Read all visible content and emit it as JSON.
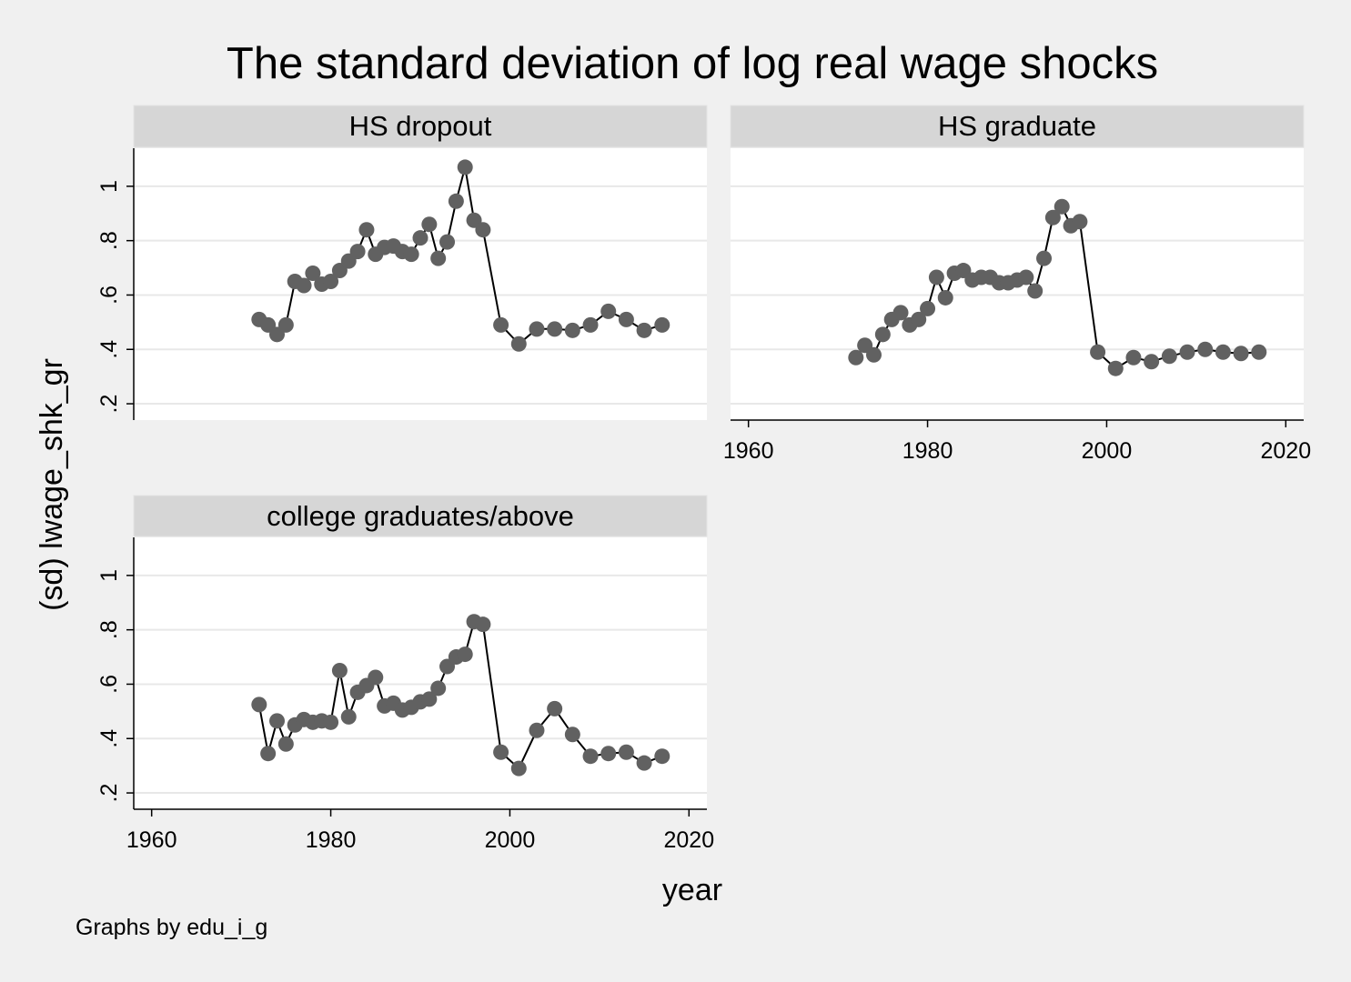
{
  "chart_data": {
    "type": "scatter",
    "title": "The standard deviation of log real wage shocks",
    "xlabel": "year",
    "ylabel": "(sd) lwage_shk_gr",
    "note": "Graphs by edu_i_g",
    "xlim": [
      1958,
      2022
    ],
    "ylim": [
      0.14,
      1.14
    ],
    "xticks": [
      1960,
      1980,
      2000,
      2020
    ],
    "yticks": [
      0.2,
      0.4,
      0.6,
      0.8,
      1
    ],
    "ytick_labels": [
      ".2",
      ".4",
      ".6",
      ".8",
      "1"
    ],
    "grid": true,
    "colors": {
      "background": "#f0f0f0",
      "plot_bg": "#ffffff",
      "strip_bg": "#d6d6d6",
      "grid": "#e8e8e8",
      "marker": "#616161",
      "line": "#000000"
    },
    "panels": [
      {
        "label": "HS dropout",
        "x": [
          1972,
          1973,
          1974,
          1975,
          1976,
          1977,
          1978,
          1979,
          1980,
          1981,
          1982,
          1983,
          1984,
          1985,
          1986,
          1987,
          1988,
          1989,
          1990,
          1991,
          1992,
          1993,
          1994,
          1995,
          1996,
          1997,
          1999,
          2001,
          2003,
          2005,
          2007,
          2009,
          2011,
          2013,
          2015,
          2017
        ],
        "y": [
          0.51,
          0.49,
          0.455,
          0.49,
          0.65,
          0.635,
          0.68,
          0.64,
          0.65,
          0.69,
          0.725,
          0.76,
          0.84,
          0.75,
          0.775,
          0.78,
          0.76,
          0.75,
          0.81,
          0.86,
          0.735,
          0.795,
          0.945,
          1.07,
          0.875,
          0.84,
          0.49,
          0.42,
          0.475,
          0.475,
          0.47,
          0.49,
          0.54,
          0.51,
          0.47,
          0.49
        ]
      },
      {
        "label": "HS graduate",
        "x": [
          1972,
          1973,
          1974,
          1975,
          1976,
          1977,
          1978,
          1979,
          1980,
          1981,
          1982,
          1983,
          1984,
          1985,
          1986,
          1987,
          1988,
          1989,
          1990,
          1991,
          1992,
          1993,
          1994,
          1995,
          1996,
          1997,
          1999,
          2001,
          2003,
          2005,
          2007,
          2009,
          2011,
          2013,
          2015,
          2017
        ],
        "y": [
          0.37,
          0.415,
          0.38,
          0.455,
          0.51,
          0.535,
          0.49,
          0.51,
          0.55,
          0.665,
          0.59,
          0.68,
          0.69,
          0.655,
          0.665,
          0.665,
          0.645,
          0.645,
          0.655,
          0.665,
          0.615,
          0.735,
          0.885,
          0.925,
          0.855,
          0.87,
          0.39,
          0.33,
          0.37,
          0.355,
          0.375,
          0.39,
          0.4,
          0.39,
          0.385,
          0.39
        ]
      },
      {
        "label": "college graduates/above",
        "x": [
          1972,
          1973,
          1974,
          1975,
          1976,
          1977,
          1978,
          1979,
          1980,
          1981,
          1982,
          1983,
          1984,
          1985,
          1986,
          1987,
          1988,
          1989,
          1990,
          1991,
          1992,
          1993,
          1994,
          1995,
          1996,
          1997,
          1999,
          2001,
          2003,
          2005,
          2007,
          2009,
          2011,
          2013,
          2015,
          2017
        ],
        "y": [
          0.525,
          0.345,
          0.465,
          0.38,
          0.45,
          0.47,
          0.46,
          0.465,
          0.46,
          0.65,
          0.48,
          0.57,
          0.595,
          0.625,
          0.52,
          0.53,
          0.505,
          0.515,
          0.535,
          0.545,
          0.585,
          0.665,
          0.7,
          0.71,
          0.83,
          0.82,
          0.35,
          0.29,
          0.43,
          0.51,
          0.415,
          0.335,
          0.345,
          0.35,
          0.31,
          0.335
        ]
      }
    ]
  }
}
